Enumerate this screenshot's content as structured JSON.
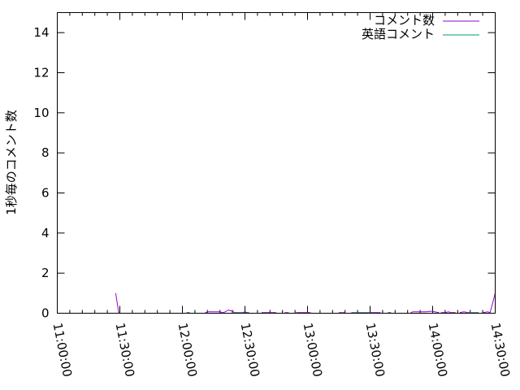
{
  "chart_data": {
    "type": "line",
    "title": "",
    "xlabel": "",
    "ylabel": "1秒毎のコメント数",
    "xlim": [
      "11:00:00",
      "14:30:00"
    ],
    "ylim": [
      0,
      15
    ],
    "x_ticks": [
      "11:00:00",
      "11:30:00",
      "12:00:00",
      "12:30:00",
      "13:00:00",
      "13:30:00",
      "14:00:00",
      "14:30:00"
    ],
    "y_ticks": [
      "0",
      "2",
      "4",
      "6",
      "8",
      "10",
      "12",
      "14"
    ],
    "grid": false,
    "legend": "top-right",
    "series": [
      {
        "name": "コメント数",
        "color": "#9400d3",
        "segments": [
          [
            [
              "11:28:00",
              1.0
            ],
            [
              "11:29:30",
              0
            ]
          ],
          [
            [
              "12:02:00",
              0.03
            ],
            [
              "12:03:30",
              0.03
            ]
          ],
          [
            [
              "12:11:00",
              0.03
            ],
            [
              "12:12:00",
              0.07
            ],
            [
              "12:18:00",
              0.07
            ],
            [
              "12:19:30",
              0.03
            ],
            [
              "12:20:30",
              0.07
            ],
            [
              "12:22:00",
              0.16
            ],
            [
              "12:24:00",
              0.1
            ],
            [
              "12:25:00",
              0.03
            ],
            [
              "12:29:00",
              0.03
            ],
            [
              "12:30:00",
              0.08
            ],
            [
              "12:31:00",
              0.03
            ],
            [
              "12:32:00",
              0.03
            ]
          ],
          [
            [
              "12:38:00",
              0.03
            ],
            [
              "12:45:00",
              0.03
            ]
          ],
          [
            [
              "12:49:00",
              0.03
            ],
            [
              "12:51:00",
              0.03
            ]
          ],
          [
            [
              "12:54:30",
              0.03
            ],
            [
              "13:01:30",
              0.03
            ]
          ],
          [
            [
              "13:15:00",
              0.03
            ],
            [
              "13:18:00",
              0.03
            ]
          ],
          [
            [
              "13:21:00",
              0.03
            ],
            [
              "13:35:00",
              0.03
            ]
          ],
          [
            [
              "13:38:30",
              0.03
            ],
            [
              "13:40:00",
              0.03
            ]
          ],
          [
            [
              "13:49:30",
              0.03
            ],
            [
              "13:50:30",
              0.07
            ],
            [
              "13:57:00",
              0.07
            ],
            [
              "13:59:00",
              0.1
            ],
            [
              "14:01:00",
              0.07
            ],
            [
              "14:03:00",
              0.03
            ]
          ],
          [
            [
              "14:04:00",
              0.03
            ],
            [
              "14:06:00",
              0.03
            ],
            [
              "14:07:30",
              0.07
            ],
            [
              "14:09:00",
              0.03
            ],
            [
              "14:11:00",
              0.03
            ]
          ],
          [
            [
              "14:13:00",
              0.03
            ],
            [
              "14:15:00",
              0.07
            ],
            [
              "14:17:00",
              0.03
            ],
            [
              "14:22:00",
              0.03
            ]
          ],
          [
            [
              "14:24:00",
              0.03
            ],
            [
              "14:26:30",
              0.07
            ],
            [
              "14:27:30",
              0.03
            ],
            [
              "14:28:30",
              0.4
            ],
            [
              "14:30:00",
              1.0
            ]
          ]
        ]
      },
      {
        "name": "英語コメント",
        "color": "#009e73",
        "segments": [
          [
            [
              "12:25:00",
              0.02
            ],
            [
              "12:31:00",
              0.02
            ]
          ],
          [
            [
              "13:21:00",
              0.02
            ],
            [
              "13:30:00",
              0.02
            ]
          ],
          [
            [
              "14:16:00",
              0.02
            ],
            [
              "14:22:00",
              0.02
            ]
          ]
        ]
      }
    ]
  }
}
